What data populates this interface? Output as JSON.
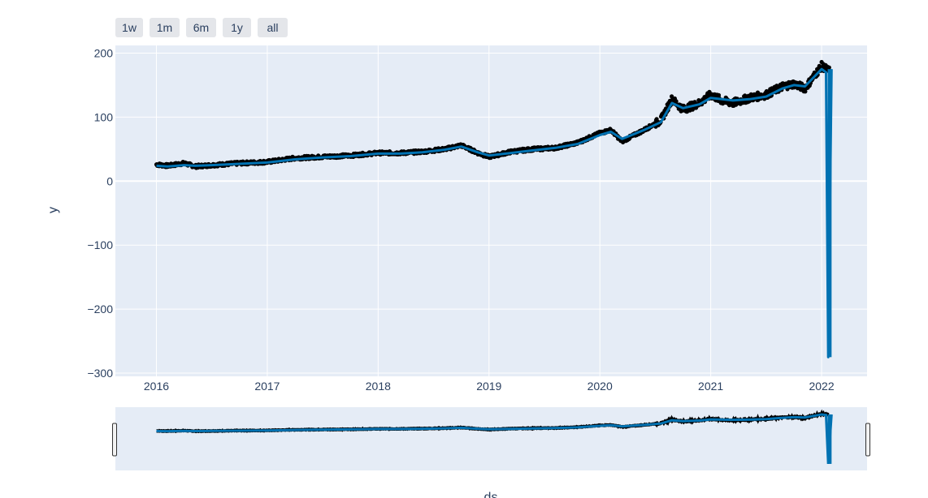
{
  "range_selector": {
    "buttons": [
      {
        "label": "1w"
      },
      {
        "label": "1m"
      },
      {
        "label": "6m"
      },
      {
        "label": "1y"
      },
      {
        "label": "all"
      }
    ]
  },
  "chart_data": {
    "type": "line",
    "xlabel": "ds",
    "ylabel": "y",
    "x_tick_labels": [
      "2016",
      "2017",
      "2018",
      "2019",
      "2020",
      "2021",
      "2022"
    ],
    "y_tick_labels": [
      "200",
      "100",
      "0",
      "−100",
      "−200",
      "−300"
    ],
    "y_ticks": [
      200,
      100,
      0,
      -100,
      -200,
      -300
    ],
    "x_ticks": [
      2016,
      2017,
      2018,
      2019,
      2020,
      2021,
      2022
    ],
    "xlim": [
      2015.63,
      2022.41
    ],
    "ylim": [
      -305,
      212
    ],
    "grid": true,
    "legend": "none",
    "rangeslider": true,
    "series": [
      {
        "style": "markers",
        "color": "#000000",
        "x": [
          2016.0,
          2016.1,
          2016.25,
          2016.35,
          2016.5,
          2016.75,
          2017.0,
          2017.25,
          2017.5,
          2017.75,
          2018.0,
          2018.2,
          2018.4,
          2018.6,
          2018.75,
          2018.9,
          2019.0,
          2019.2,
          2019.4,
          2019.6,
          2019.8,
          2020.0,
          2020.1,
          2020.2,
          2020.4,
          2020.55,
          2020.65,
          2020.75,
          2020.9,
          2021.0,
          2021.1,
          2021.2,
          2021.35,
          2021.5,
          2021.65,
          2021.75,
          2021.85,
          2022.0,
          2022.07
        ],
        "y": [
          26,
          24,
          28,
          23,
          25,
          28,
          30,
          36,
          38,
          40,
          44,
          44,
          46,
          50,
          56,
          44,
          38,
          46,
          50,
          52,
          60,
          75,
          80,
          62,
          80,
          95,
          128,
          112,
          122,
          135,
          126,
          122,
          130,
          135,
          148,
          152,
          145,
          180,
          172
        ]
      },
      {
        "style": "line",
        "color": "#0072b2",
        "x": [
          2016.0,
          2016.1,
          2016.25,
          2016.35,
          2016.5,
          2016.75,
          2017.0,
          2017.25,
          2017.5,
          2017.75,
          2018.0,
          2018.2,
          2018.4,
          2018.6,
          2018.75,
          2018.9,
          2019.0,
          2019.2,
          2019.4,
          2019.6,
          2019.8,
          2020.0,
          2020.1,
          2020.2,
          2020.4,
          2020.55,
          2020.65,
          2020.75,
          2020.9,
          2021.0,
          2021.1,
          2021.2,
          2021.35,
          2021.5,
          2021.65,
          2021.75,
          2021.85,
          2022.0,
          2022.04,
          2022.06,
          2022.09
        ],
        "y": [
          24,
          23,
          25,
          24,
          25,
          27,
          29,
          34,
          37,
          39,
          43,
          43,
          45,
          49,
          54,
          45,
          40,
          44,
          48,
          52,
          58,
          72,
          77,
          66,
          80,
          92,
          122,
          114,
          120,
          130,
          128,
          126,
          128,
          132,
          145,
          150,
          148,
          175,
          170,
          -275,
          175
        ]
      }
    ]
  }
}
